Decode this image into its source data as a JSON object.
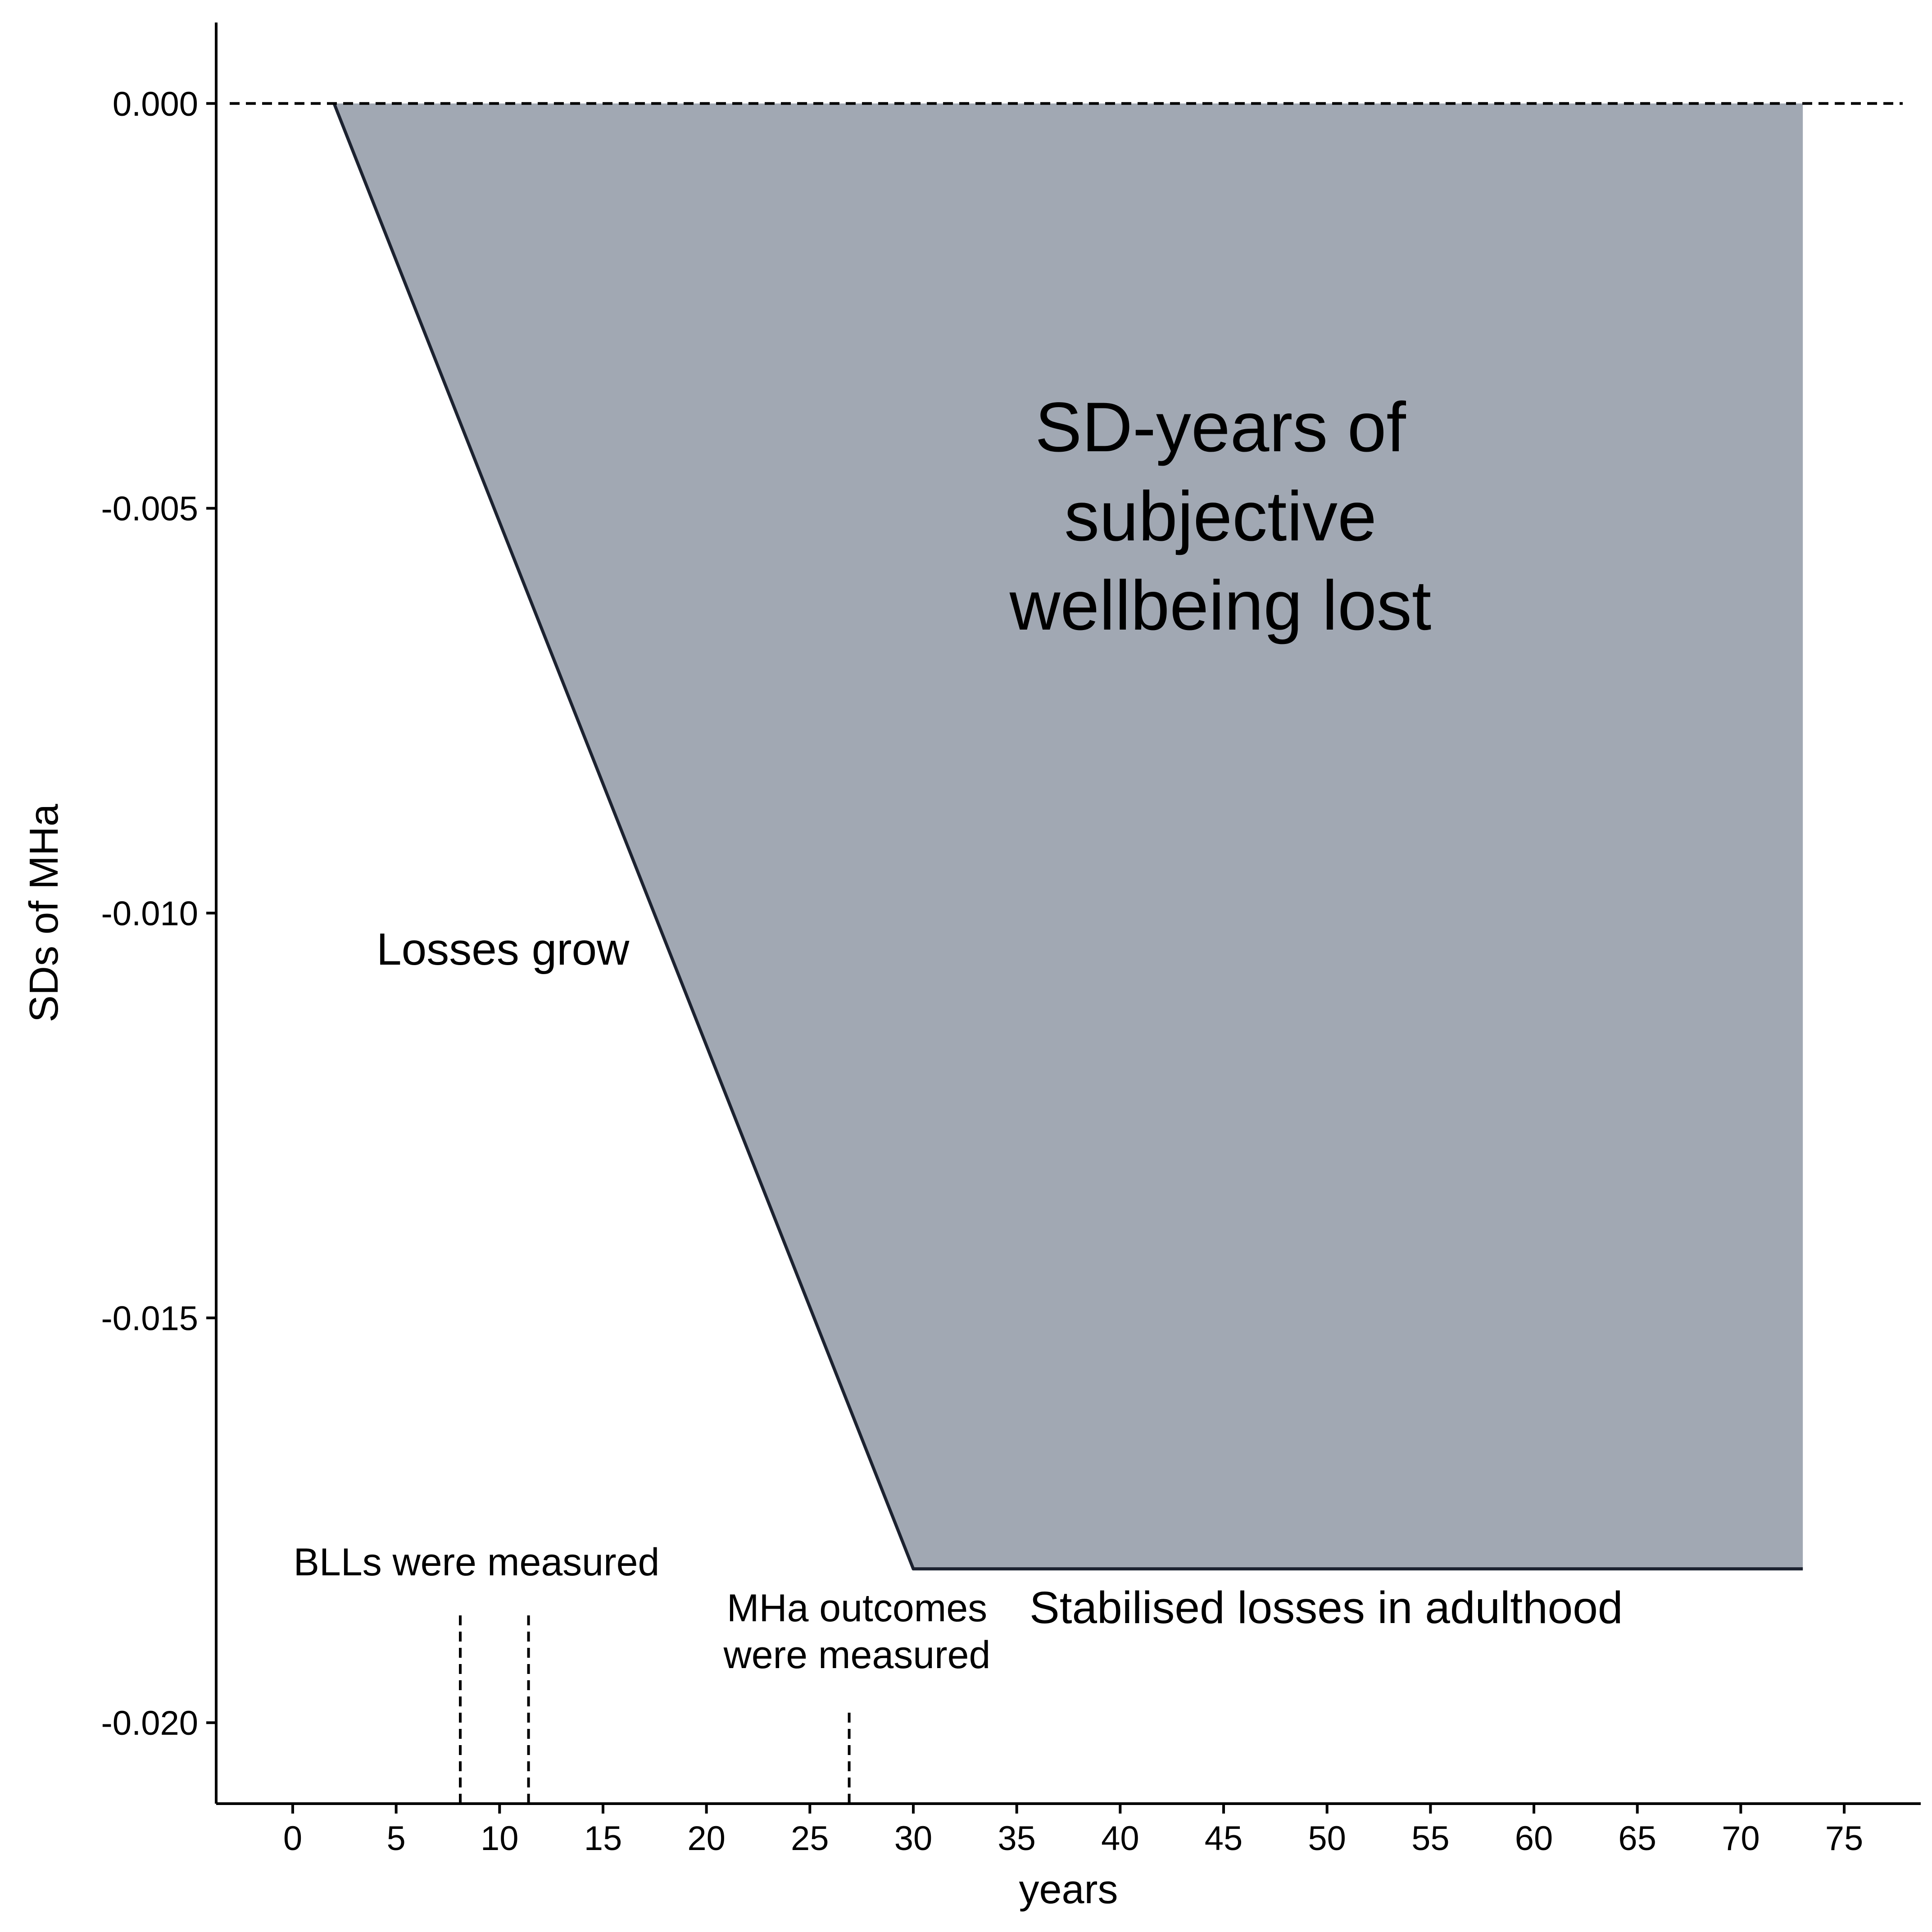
{
  "chart_data": {
    "type": "area",
    "title": "",
    "xlabel": "years",
    "ylabel": "SDs of MHa",
    "xlim": [
      -3.7,
      78.7
    ],
    "ylim": [
      -0.021,
      0.001
    ],
    "x_ticks": [
      0,
      5,
      10,
      15,
      20,
      25,
      30,
      35,
      40,
      45,
      50,
      55,
      60,
      65,
      70,
      75
    ],
    "x_tick_labels": [
      "0",
      "5",
      "10",
      "15",
      "20",
      "25",
      "30",
      "35",
      "40",
      "45",
      "50",
      "55",
      "60",
      "65",
      "70",
      "75"
    ],
    "y_ticks": [
      0.0,
      -0.005,
      -0.01,
      -0.015,
      -0.02
    ],
    "y_tick_labels": [
      "0.000",
      "-0.005",
      "-0.010",
      "-0.015",
      "-0.020"
    ],
    "grid": false,
    "series": [
      {
        "x": [
          2,
          30,
          73
        ],
        "y": [
          0.0,
          -0.0181,
          -0.0181
        ],
        "fill": "#a1a8b3",
        "line": "#1c2230"
      }
    ],
    "reference_lines": [
      {
        "orientation": "horizontal",
        "y": 0.0,
        "style": "dashed"
      },
      {
        "orientation": "vertical",
        "x": 8.1,
        "y_range": [
          -0.021,
          -0.0186
        ],
        "style": "dashed"
      },
      {
        "orientation": "vertical",
        "x": 11.4,
        "y_range": [
          -0.021,
          -0.0186
        ],
        "style": "dashed"
      },
      {
        "orientation": "vertical",
        "x": 26.9,
        "y_range": [
          -0.021,
          -0.0198
        ],
        "style": "dashed"
      }
    ],
    "annotations": {
      "area_label": [
        "SD-years of",
        "subjective",
        "wellbeing lost"
      ],
      "losses_grow": "Losses grow",
      "stabilised": "Stabilised losses in adulthood",
      "blls": "BLLs were measured",
      "mha": [
        "MHa outcomes",
        "were measured"
      ]
    }
  }
}
